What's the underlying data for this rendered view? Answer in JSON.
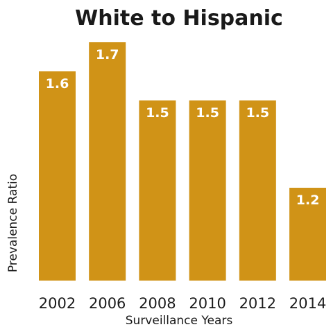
{
  "colors": {
    "bar": "#D09317",
    "text": "#1a1a1a",
    "label": "#ffffff"
  },
  "chart_data": {
    "type": "bar",
    "title": "White to Hispanic",
    "xlabel": "Surveillance Years",
    "ylabel": "Prevalence Ratio",
    "categories": [
      "2002",
      "2006",
      "2008",
      "2010",
      "2012",
      "2014"
    ],
    "values": [
      1.6,
      1.7,
      1.5,
      1.5,
      1.5,
      1.2
    ],
    "value_labels": [
      "1.6",
      "1.7",
      "1.5",
      "1.5",
      "1.5",
      "1.2"
    ],
    "ylim": [
      1.0,
      1.75
    ],
    "grid": false,
    "legend": false
  }
}
